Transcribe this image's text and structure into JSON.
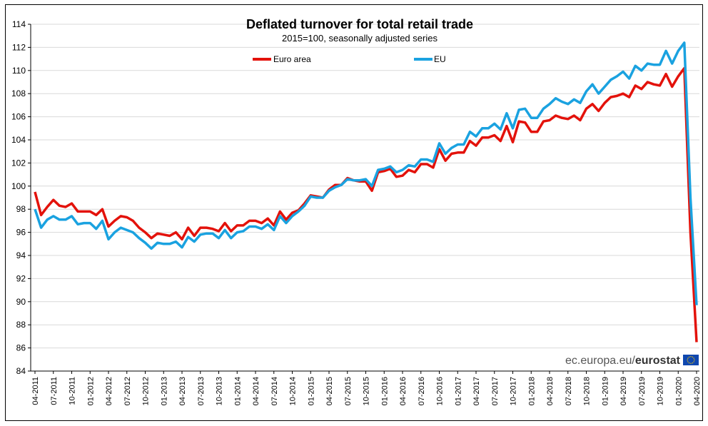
{
  "chart_data": {
    "type": "line",
    "title": "Deflated turnover for total retail trade",
    "subtitle": "2015=100, seasonally adjusted series",
    "xlabel": "",
    "ylabel": "",
    "ylim": [
      84,
      114
    ],
    "yticks": [
      84,
      86,
      88,
      90,
      92,
      94,
      96,
      98,
      100,
      102,
      104,
      106,
      108,
      110,
      112,
      114
    ],
    "xtick_labels": [
      "04-2011",
      "07-2011",
      "10-2011",
      "01-2012",
      "04-2012",
      "07-2012",
      "10-2012",
      "01-2013",
      "04-2013",
      "07-2013",
      "10-2013",
      "01-2014",
      "04-2014",
      "07-2014",
      "10-2014",
      "01-2015",
      "04-2015",
      "07-2015",
      "10-2015",
      "01-2016",
      "04-2016",
      "07-2016",
      "10-2016",
      "01-2017",
      "04-2017",
      "07-2017",
      "10-2017",
      "01-2018",
      "04-2018",
      "07-2018",
      "10-2018",
      "01-2019",
      "04-2019",
      "07-2019",
      "10-2019",
      "01-2020",
      "04-2020"
    ],
    "x_start": "04-2011",
    "x_end": "04-2020",
    "grid": true,
    "legend_position": "top",
    "series": [
      {
        "name": "Euro area",
        "color": "#e3120b",
        "values": [
          99.5,
          97.5,
          98.2,
          98.8,
          98.3,
          98.2,
          98.5,
          97.8,
          97.8,
          97.8,
          97.5,
          98.0,
          96.5,
          97.0,
          97.4,
          97.3,
          97.0,
          96.4,
          96.0,
          95.5,
          95.9,
          95.8,
          95.7,
          96.0,
          95.4,
          96.4,
          95.7,
          96.4,
          96.4,
          96.3,
          96.1,
          96.8,
          96.1,
          96.6,
          96.6,
          97.0,
          97.0,
          96.8,
          97.2,
          96.6,
          97.8,
          97.1,
          97.7,
          97.9,
          98.5,
          99.2,
          99.1,
          99.0,
          99.7,
          100.1,
          100.1,
          100.7,
          100.5,
          100.4,
          100.4,
          99.6,
          101.2,
          101.3,
          101.5,
          100.8,
          100.9,
          101.4,
          101.2,
          101.9,
          101.9,
          101.6,
          103.2,
          102.2,
          102.8,
          102.9,
          102.9,
          103.9,
          103.5,
          104.2,
          104.2,
          104.4,
          103.9,
          105.2,
          103.8,
          105.6,
          105.5,
          104.7,
          104.7,
          105.6,
          105.7,
          106.1,
          105.9,
          105.8,
          106.1,
          105.7,
          106.7,
          107.1,
          106.5,
          107.2,
          107.7,
          107.8,
          108.0,
          107.7,
          108.7,
          108.4,
          109.0,
          108.8,
          108.7,
          109.7,
          108.6,
          109.5,
          110.2,
          96.0,
          86.5
        ]
      },
      {
        "name": "EU",
        "color": "#1aa2e0",
        "values": [
          98.0,
          96.4,
          97.1,
          97.4,
          97.1,
          97.1,
          97.4,
          96.7,
          96.8,
          96.8,
          96.3,
          97.0,
          95.4,
          96.0,
          96.4,
          96.2,
          96.0,
          95.5,
          95.1,
          94.6,
          95.1,
          95.0,
          95.0,
          95.2,
          94.7,
          95.6,
          95.2,
          95.8,
          95.9,
          95.9,
          95.5,
          96.2,
          95.5,
          96.0,
          96.1,
          96.5,
          96.5,
          96.3,
          96.7,
          96.2,
          97.4,
          96.8,
          97.4,
          97.8,
          98.3,
          99.1,
          99.0,
          99.0,
          99.6,
          99.9,
          100.1,
          100.6,
          100.5,
          100.5,
          100.6,
          100.0,
          101.4,
          101.5,
          101.7,
          101.2,
          101.4,
          101.8,
          101.7,
          102.3,
          102.3,
          102.1,
          103.7,
          102.8,
          103.3,
          103.6,
          103.6,
          104.7,
          104.3,
          105.0,
          105.0,
          105.4,
          104.9,
          106.3,
          105.0,
          106.6,
          106.7,
          105.9,
          105.9,
          106.7,
          107.1,
          107.6,
          107.3,
          107.1,
          107.5,
          107.2,
          108.2,
          108.8,
          108.0,
          108.6,
          109.2,
          109.5,
          109.9,
          109.3,
          110.4,
          110.0,
          110.6,
          110.5,
          110.5,
          111.7,
          110.6,
          111.7,
          112.4,
          99.0,
          89.7
        ]
      }
    ]
  },
  "source": {
    "prefix": "ec.europa.eu/",
    "brand": "eurostat",
    "flag_color": "#0f47af",
    "star_color": "#ffcc00"
  }
}
